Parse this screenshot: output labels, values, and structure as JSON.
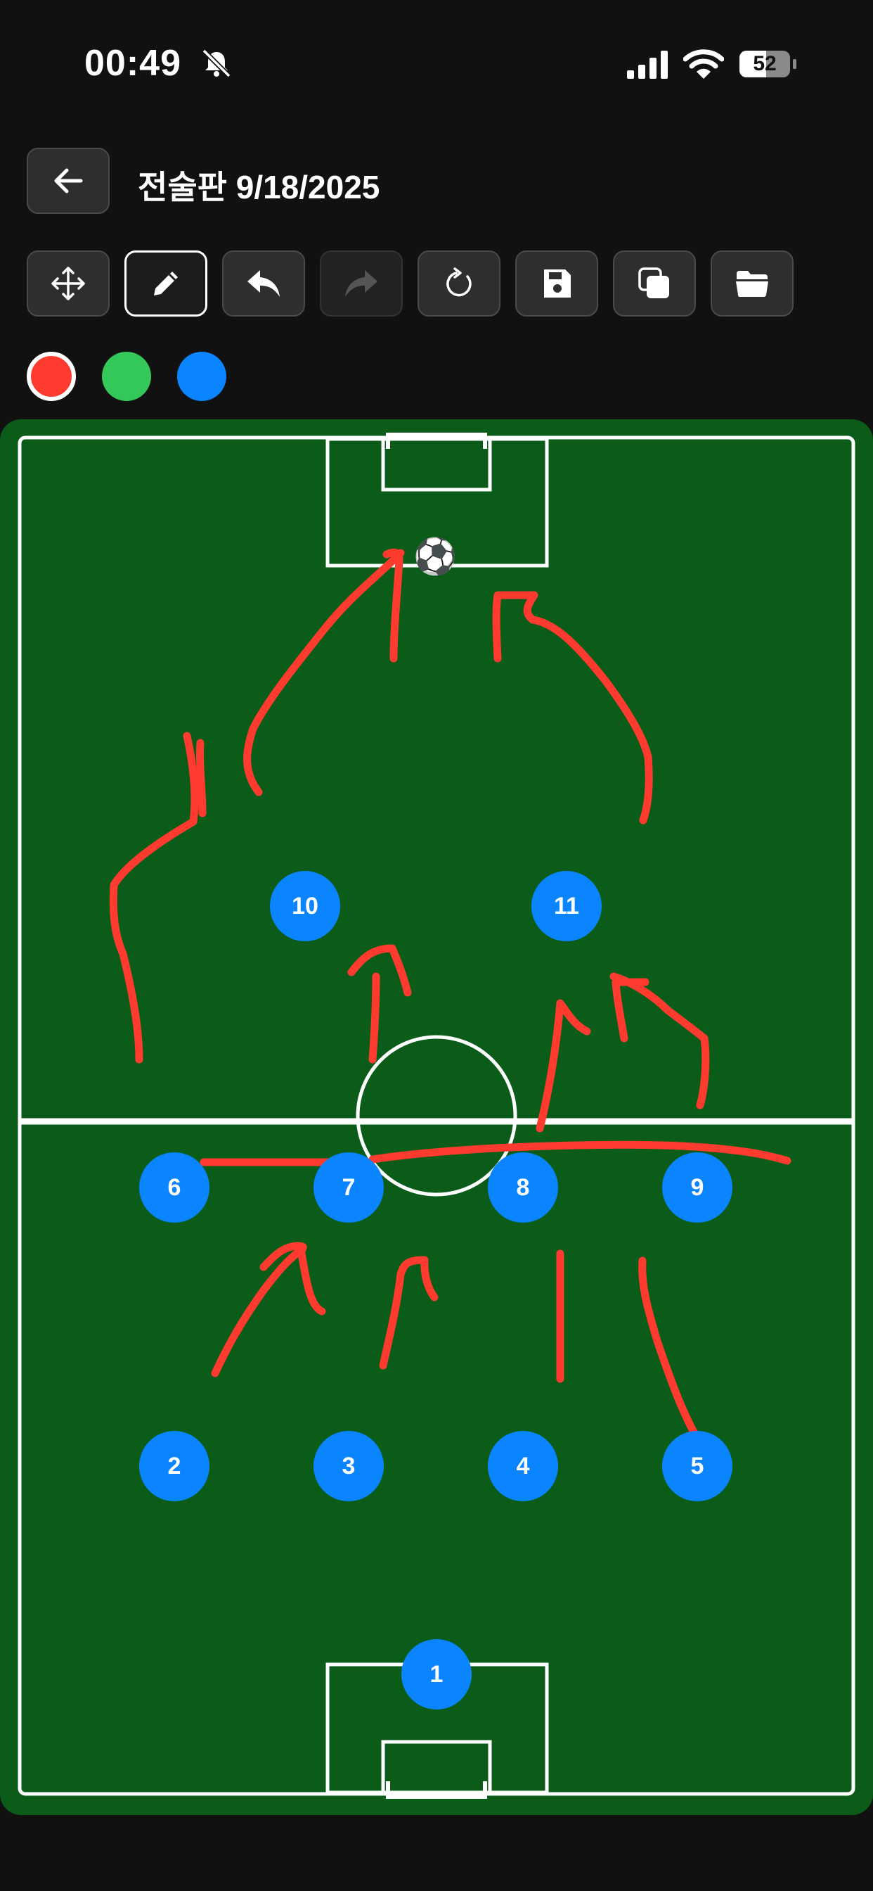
{
  "status": {
    "time": "00:49",
    "battery": "52",
    "icons": [
      "bell-slash-icon",
      "cellular-signal-icon",
      "wifi-icon",
      "battery-icon"
    ]
  },
  "header": {
    "title": "전술판 9/18/2025",
    "back_icon": "arrow-left-icon"
  },
  "toolbar": {
    "tools": [
      {
        "id": "move",
        "icon": "move-arrows-icon",
        "active": false,
        "disabled": false
      },
      {
        "id": "draw",
        "icon": "pencil-icon",
        "active": true,
        "disabled": false
      },
      {
        "id": "undo",
        "icon": "undo-icon",
        "active": false,
        "disabled": false
      },
      {
        "id": "redo",
        "icon": "redo-icon",
        "active": false,
        "disabled": true
      },
      {
        "id": "reset",
        "icon": "refresh-icon",
        "active": false,
        "disabled": false
      },
      {
        "id": "save",
        "icon": "save-icon",
        "active": false,
        "disabled": false
      },
      {
        "id": "duplicate",
        "icon": "copy-icon",
        "active": false,
        "disabled": false
      },
      {
        "id": "open",
        "icon": "folder-icon",
        "active": false,
        "disabled": false
      }
    ]
  },
  "colors": {
    "options": [
      {
        "name": "red",
        "hex": "#ff3b30",
        "selected": true
      },
      {
        "name": "green",
        "hex": "#34c759",
        "selected": false
      },
      {
        "name": "blue",
        "hex": "#0a84ff",
        "selected": false
      }
    ]
  },
  "field": {
    "grass_color": "#0a5c18",
    "line_color": "#ffffff",
    "ball_symbol": "⚽",
    "players": [
      "1",
      "2",
      "3",
      "4",
      "5",
      "6",
      "7",
      "8",
      "9",
      "10",
      "11"
    ]
  }
}
